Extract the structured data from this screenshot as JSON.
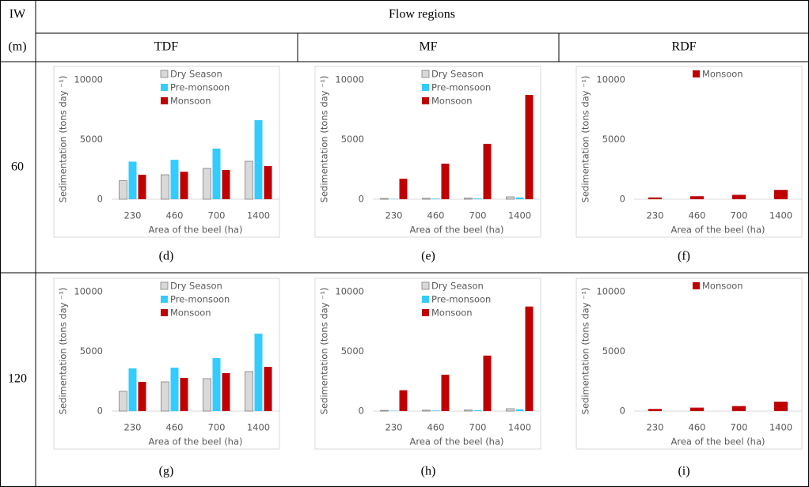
{
  "table": {
    "header": [
      "IW",
      "Flow regions"
    ],
    "subheader": [
      "(m)",
      "TDF",
      "MF",
      "RDF"
    ],
    "rows": [
      {
        "iw": "60",
        "captions": [
          "(d)",
          "(e)",
          "(f)"
        ]
      },
      {
        "iw": "120",
        "captions": [
          "(g)",
          "(h)",
          "(i)"
        ]
      }
    ]
  },
  "chart_data": [
    {
      "type": "bar",
      "categories": [
        "230",
        "460",
        "700",
        "1400"
      ],
      "xlabel": "Area of the beel (ha)",
      "ylabel": "Sedimentation (tons day ⁻¹)",
      "ylim": [
        0,
        10000
      ],
      "yticks": [
        0,
        5000,
        10000
      ],
      "series": [
        {
          "name": "Dry Season",
          "color": "#d9d9d9",
          "values": [
            1550,
            2050,
            2580,
            3180
          ]
        },
        {
          "name": "Pre-monsoon",
          "color": "#33ccff",
          "values": [
            3150,
            3300,
            4240,
            6620
          ]
        },
        {
          "name": "Monsoon",
          "color": "#c00000",
          "values": [
            2050,
            2300,
            2450,
            2780
          ]
        }
      ]
    },
    {
      "type": "bar",
      "categories": [
        "230",
        "460",
        "700",
        "1400"
      ],
      "xlabel": "Area of the beel (ha)",
      "ylabel": "Sedimentation (tons day ⁻¹)",
      "ylim": [
        0,
        10000
      ],
      "yticks": [
        0,
        5000,
        10000
      ],
      "series": [
        {
          "name": "Dry Season",
          "color": "#d9d9d9",
          "values": [
            60,
            80,
            100,
            200
          ]
        },
        {
          "name": "Pre-monsoon",
          "color": "#33ccff",
          "values": [
            30,
            50,
            70,
            150
          ]
        },
        {
          "name": "Monsoon",
          "color": "#c00000",
          "values": [
            1720,
            2980,
            4640,
            8740
          ]
        }
      ]
    },
    {
      "type": "bar",
      "categories": [
        "230",
        "460",
        "700",
        "1400"
      ],
      "xlabel": "Area of the beel (ha)",
      "ylabel": "Sedimentation (tons day ⁻¹)",
      "ylim": [
        0,
        10000
      ],
      "yticks": [
        0,
        5000,
        10000
      ],
      "series": [
        {
          "name": "Monsoon",
          "color": "#c00000",
          "values": [
            150,
            250,
            370,
            780
          ]
        }
      ]
    },
    {
      "type": "bar",
      "categories": [
        "230",
        "460",
        "700",
        "1400"
      ],
      "xlabel": "Area of the beel (ha)",
      "ylabel": "Sedimentation (tons day ⁻¹)",
      "ylim": [
        0,
        10000
      ],
      "yticks": [
        0,
        5000,
        10000
      ],
      "series": [
        {
          "name": "Dry Season",
          "color": "#d9d9d9",
          "values": [
            1660,
            2450,
            2720,
            3310
          ]
        },
        {
          "name": "Pre-monsoon",
          "color": "#33ccff",
          "values": [
            3580,
            3640,
            4440,
            6490
          ]
        },
        {
          "name": "Monsoon",
          "color": "#c00000",
          "values": [
            2450,
            2780,
            3180,
            3710
          ]
        }
      ]
    },
    {
      "type": "bar",
      "categories": [
        "230",
        "460",
        "700",
        "1400"
      ],
      "xlabel": "Area of the beel (ha)",
      "ylabel": "Sedimentation (tons day ⁻¹)",
      "ylim": [
        0,
        10000
      ],
      "yticks": [
        0,
        5000,
        10000
      ],
      "series": [
        {
          "name": "Dry Season",
          "color": "#d9d9d9",
          "values": [
            60,
            80,
            100,
            200
          ]
        },
        {
          "name": "Pre-monsoon",
          "color": "#33ccff",
          "values": [
            30,
            50,
            70,
            150
          ]
        },
        {
          "name": "Monsoon",
          "color": "#c00000",
          "values": [
            1750,
            3050,
            4650,
            8760
          ]
        }
      ]
    },
    {
      "type": "bar",
      "categories": [
        "230",
        "460",
        "700",
        "1400"
      ],
      "xlabel": "Area of the beel (ha)",
      "ylabel": "Sedimentation (tons day ⁻¹)",
      "ylim": [
        0,
        10000
      ],
      "yticks": [
        0,
        5000,
        10000
      ],
      "series": [
        {
          "name": "Monsoon",
          "color": "#c00000",
          "values": [
            180,
            290,
            420,
            790
          ]
        }
      ]
    }
  ]
}
